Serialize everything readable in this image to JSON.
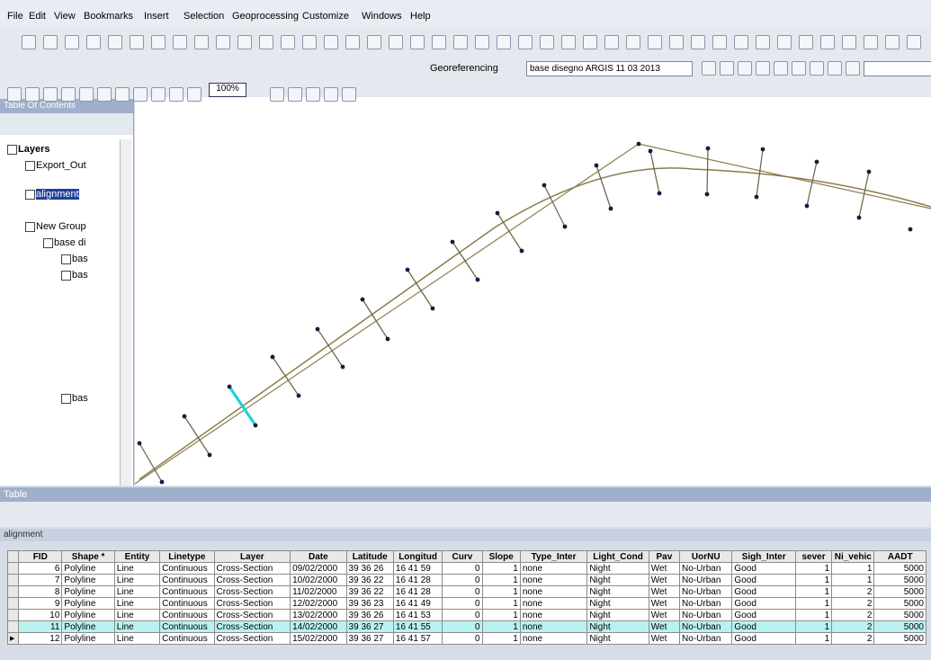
{
  "menu": [
    "File",
    "Edit",
    "View",
    "Bookmarks",
    "Insert",
    "Selection",
    "Geoprocessing",
    "Customize",
    "Windows",
    "Help"
  ],
  "toolbar": {
    "georeferencing": "Georeferencing",
    "layer_select": "base disegno ARGIS 11 03 2013",
    "zoom": "100%"
  },
  "toc": {
    "title": "Table Of Contents",
    "items": [
      "Layers",
      "Export_Out",
      "alignment",
      "New Group",
      "base di",
      "bas",
      "bas",
      "bas"
    ]
  },
  "table": {
    "title": "Table",
    "tab": "alignment",
    "columns": [
      "FID",
      "Shape *",
      "Entity",
      "Linetype",
      "Layer",
      "Date",
      "Latitude",
      "Longitud",
      "Curv",
      "Slope",
      "Type_Inter",
      "Light_Cond",
      "Pav",
      "UorNU",
      "Sigh_Inter",
      "sever",
      "Ni_vehic",
      "AADT"
    ],
    "rows": [
      [
        6,
        "Polyline",
        "Line",
        "Continuous",
        "Cross-Section",
        "09/02/2000",
        "39 36 26",
        "16 41 59",
        0,
        1,
        "none",
        "Night",
        "Wet",
        "No-Urban",
        "Good",
        1,
        1,
        5000
      ],
      [
        7,
        "Polyline",
        "Line",
        "Continuous",
        "Cross-Section",
        "10/02/2000",
        "39 36 22",
        "16 41 28",
        0,
        1,
        "none",
        "Night",
        "Wet",
        "No-Urban",
        "Good",
        1,
        1,
        5000
      ],
      [
        8,
        "Polyline",
        "Line",
        "Continuous",
        "Cross-Section",
        "11/02/2000",
        "39 36 22",
        "16 41 28",
        0,
        1,
        "none",
        "Night",
        "Wet",
        "No-Urban",
        "Good",
        1,
        2,
        5000
      ],
      [
        9,
        "Polyline",
        "Line",
        "Continuous",
        "Cross-Section",
        "12/02/2000",
        "39 36 23",
        "16 41 49",
        0,
        1,
        "none",
        "Night",
        "Wet",
        "No-Urban",
        "Good",
        1,
        2,
        5000
      ],
      [
        10,
        "Polyline",
        "Line",
        "Continuous",
        "Cross-Section",
        "13/02/2000",
        "39 36 26",
        "16 41 53",
        0,
        1,
        "none",
        "Night",
        "Wet",
        "No-Urban",
        "Good",
        1,
        2,
        5000
      ],
      [
        11,
        "Polyline",
        "Line",
        "Continuous",
        "Cross-Section",
        "14/02/2000",
        "39 36 27",
        "16 41 55",
        0,
        1,
        "none",
        "Night",
        "Wet",
        "No-Urban",
        "Good",
        1,
        2,
        5000
      ],
      [
        12,
        "Polyline",
        "Line",
        "Continuous",
        "Cross-Section",
        "15/02/2000",
        "39 36 27",
        "16 41 57",
        0,
        1,
        "none",
        "Night",
        "Wet",
        "No-Urban",
        "Good",
        1,
        2,
        5000
      ]
    ]
  }
}
